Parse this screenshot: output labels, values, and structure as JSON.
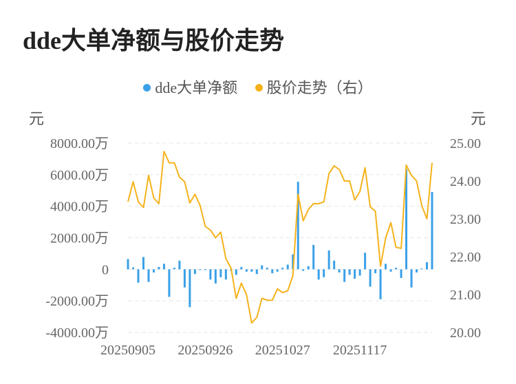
{
  "title": "dde大单净额与股价走势",
  "units": {
    "left": "元",
    "right": "元"
  },
  "colors": {
    "bar": "#3aa0e8",
    "line": "#f5b21a",
    "grid": "#e6e6e6",
    "tick": "#666666"
  },
  "chart_data": {
    "type": "bar+line",
    "legend": [
      "dde大单净额",
      "股价走势（右）"
    ],
    "x_tick_labels": [
      "20250905",
      "20250926",
      "20251027",
      "20251117"
    ],
    "x_tick_index": [
      0,
      15,
      30,
      45
    ],
    "y_left": {
      "min": -4000,
      "max": 8000,
      "ticks": [
        -4000,
        -2000,
        0,
        2000,
        4000,
        6000,
        8000
      ],
      "tick_labels": [
        "-4000.00万",
        "-2000.00万",
        "0",
        "2000.00万",
        "4000.00万",
        "6000.00万",
        "8000.00万"
      ]
    },
    "y_right": {
      "min": 20,
      "max": 25,
      "ticks": [
        20,
        21,
        22,
        23,
        24,
        25
      ],
      "tick_labels": [
        "20.00",
        "21.00",
        "22.00",
        "23.00",
        "24.00",
        "25.00"
      ]
    },
    "series": [
      {
        "name": "dde大单净额",
        "type": "bar",
        "axis": "left",
        "values": [
          650,
          120,
          -850,
          780,
          -800,
          -200,
          150,
          350,
          -1750,
          100,
          550,
          -1150,
          -2400,
          -300,
          -50,
          -50,
          -650,
          -900,
          -500,
          -650,
          -100,
          -350,
          150,
          -150,
          -150,
          -300,
          250,
          100,
          -250,
          -150,
          100,
          300,
          950,
          5550,
          -100,
          200,
          1550,
          -650,
          -500,
          1200,
          550,
          -200,
          -800,
          -350,
          -600,
          -400,
          1050,
          -1100,
          -250,
          -1900,
          350,
          -150,
          100,
          -550,
          6350,
          -1150,
          -200,
          50,
          450,
          4900
        ]
      },
      {
        "name": "股价走势（右）",
        "type": "line",
        "axis": "right",
        "values": [
          23.45,
          23.98,
          23.45,
          23.3,
          24.15,
          23.55,
          23.4,
          24.78,
          24.48,
          24.48,
          24.1,
          23.98,
          23.42,
          23.65,
          23.35,
          22.8,
          22.7,
          22.5,
          22.65,
          21.95,
          21.7,
          20.9,
          21.3,
          21.0,
          20.25,
          20.4,
          20.9,
          20.85,
          20.85,
          21.15,
          21.05,
          21.1,
          21.5,
          23.65,
          22.95,
          23.25,
          23.4,
          23.4,
          23.45,
          24.2,
          24.4,
          24.3,
          24.0,
          24.0,
          23.5,
          23.72,
          24.35,
          23.32,
          23.2,
          21.75,
          22.5,
          22.9,
          22.25,
          22.22,
          24.42,
          24.15,
          24.0,
          23.35,
          23.0,
          24.48
        ]
      }
    ]
  }
}
